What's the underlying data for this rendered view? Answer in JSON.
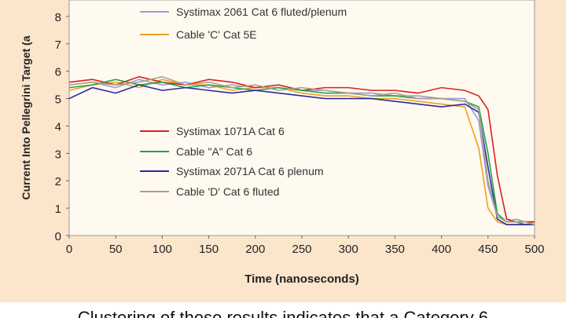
{
  "chart_data": {
    "type": "line",
    "y_label": "Current Into Pellegrini Target (a",
    "x_label": "Time (nanoseconds)",
    "caption": "Clustering of these results indicates that a Category 6",
    "xlim": [
      0,
      500
    ],
    "xticks": [
      0,
      50,
      100,
      150,
      200,
      250,
      300,
      350,
      400,
      450,
      500
    ],
    "ylim": [
      0,
      8.6
    ],
    "yticks": [
      0,
      1,
      2,
      3,
      4,
      5,
      6,
      7,
      8
    ],
    "x": [
      0,
      25,
      50,
      75,
      100,
      125,
      150,
      175,
      200,
      225,
      250,
      275,
      300,
      325,
      350,
      375,
      400,
      425,
      440,
      450,
      460,
      470,
      480,
      490,
      500
    ],
    "series": [
      {
        "name": "Systimax 2061 Cat 6 fluted/plenum",
        "color": "#9a9ae0",
        "values": [
          5.5,
          5.6,
          5.4,
          5.7,
          5.5,
          5.6,
          5.4,
          5.5,
          5.4,
          5.5,
          5.3,
          5.3,
          5.2,
          5.2,
          5.1,
          5.1,
          5.0,
          5.0,
          4.2,
          1.8,
          0.7,
          0.5,
          0.6,
          0.5,
          0.5
        ]
      },
      {
        "name": "Cable 'C' Cat 5E",
        "color": "#f0a020",
        "values": [
          5.3,
          5.5,
          5.6,
          5.4,
          5.7,
          5.5,
          5.5,
          5.3,
          5.4,
          5.4,
          5.2,
          5.1,
          5.1,
          5.0,
          5.0,
          4.9,
          4.8,
          4.7,
          3.2,
          1.0,
          0.5,
          0.4,
          0.4,
          0.4,
          0.5
        ]
      },
      {
        "name": "Systimax 1071A Cat 6",
        "color": "#d82020",
        "values": [
          5.6,
          5.7,
          5.5,
          5.8,
          5.6,
          5.5,
          5.7,
          5.6,
          5.4,
          5.5,
          5.3,
          5.4,
          5.4,
          5.3,
          5.3,
          5.2,
          5.4,
          5.3,
          5.1,
          4.6,
          2.2,
          0.6,
          0.5,
          0.5,
          0.5
        ]
      },
      {
        "name": "Cable \"A\" Cat 6",
        "color": "#20a050",
        "values": [
          5.4,
          5.5,
          5.7,
          5.5,
          5.6,
          5.4,
          5.5,
          5.4,
          5.3,
          5.4,
          5.3,
          5.2,
          5.2,
          5.1,
          5.1,
          5.0,
          5.0,
          4.9,
          4.7,
          3.0,
          0.8,
          0.5,
          0.5,
          0.4,
          0.4
        ]
      },
      {
        "name": "Systimax 2071A Cat 6 plenum",
        "color": "#2a2aa0",
        "values": [
          5.0,
          5.4,
          5.2,
          5.5,
          5.3,
          5.4,
          5.3,
          5.2,
          5.3,
          5.2,
          5.1,
          5.0,
          5.0,
          5.0,
          4.9,
          4.8,
          4.7,
          4.8,
          4.5,
          2.5,
          0.6,
          0.4,
          0.4,
          0.4,
          0.4
        ]
      },
      {
        "name": "Cable 'D' Cat 6 fluted",
        "color": "#b0a080",
        "values": [
          5.5,
          5.6,
          5.5,
          5.6,
          5.8,
          5.5,
          5.6,
          5.4,
          5.5,
          5.3,
          5.4,
          5.3,
          5.2,
          5.1,
          5.2,
          5.0,
          5.0,
          4.9,
          4.6,
          2.0,
          0.7,
          0.5,
          0.5,
          0.5,
          0.4
        ]
      }
    ]
  }
}
